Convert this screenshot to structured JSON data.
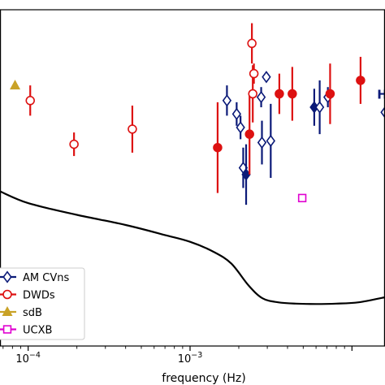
{
  "chart_data": {
    "type": "scatter",
    "title": "",
    "xlabel": "frequency (Hz)",
    "ylabel": "",
    "xscale": "log",
    "xlim": [
      6.7e-05,
      0.016
    ],
    "ylim": [
      0.5,
      10.5
    ],
    "grid": false,
    "legend_position": "lower-left",
    "x_ticks": [
      {
        "value": 0.0001,
        "base": "10",
        "exp": "−4"
      },
      {
        "value": 0.001,
        "base": "10",
        "exp": "−3"
      }
    ],
    "sensitivity_curve": {
      "x": [
        6.7e-05,
        0.0001,
        0.0002,
        0.0004,
        0.0007,
        0.001,
        0.0014,
        0.0018,
        0.0023,
        0.0028,
        0.0035,
        0.0045,
        0.006,
        0.008,
        0.011,
        0.016
      ],
      "y": [
        5.1,
        4.75,
        4.4,
        4.1,
        3.8,
        3.6,
        3.3,
        2.95,
        2.3,
        1.92,
        1.8,
        1.76,
        1.75,
        1.76,
        1.8,
        1.95
      ]
    },
    "annotations": [
      {
        "text": "H",
        "x": 0.0143,
        "y": 7.98,
        "color": "#0b1a78"
      }
    ],
    "series": [
      {
        "name": "AM CVns",
        "color": "#0b1a78",
        "marker": "diamond",
        "points": [
          {
            "x": 0.00169,
            "y": 7.8,
            "err": 0.45,
            "filled": false
          },
          {
            "x": 0.00194,
            "y": 7.4,
            "err": 0.35,
            "filled": false
          },
          {
            "x": 0.00205,
            "y": 7.0,
            "err": 0.35,
            "filled": false
          },
          {
            "x": 0.00213,
            "y": 5.8,
            "err": 0.6,
            "filled": false
          },
          {
            "x": 0.00222,
            "y": 5.6,
            "err": 0.9,
            "filled": true
          },
          {
            "x": 0.00275,
            "y": 7.9,
            "err": 0.3,
            "filled": false
          },
          {
            "x": 0.00296,
            "y": 8.5,
            "err": 0.0,
            "filled": false
          },
          {
            "x": 0.00278,
            "y": 6.55,
            "err": 0.65,
            "filled": false
          },
          {
            "x": 0.00315,
            "y": 6.6,
            "err": 1.1,
            "filled": false
          },
          {
            "x": 0.00585,
            "y": 7.6,
            "err": 0.55,
            "filled": true
          },
          {
            "x": 0.00632,
            "y": 7.6,
            "err": 0.8,
            "filled": false
          },
          {
            "x": 0.0071,
            "y": 7.9,
            "err": 0.3,
            "filled": false
          },
          {
            "x": 0.016,
            "y": 7.45,
            "err": 0.0,
            "filled": false
          }
        ]
      },
      {
        "name": "DWDs",
        "color": "#dd1111",
        "marker": "circle",
        "points": [
          {
            "x": 0.000103,
            "y": 7.8,
            "err": 0.45,
            "filled": false
          },
          {
            "x": 0.000192,
            "y": 6.5,
            "err": 0.35,
            "filled": false
          },
          {
            "x": 0.00044,
            "y": 6.95,
            "err": 0.7,
            "filled": false
          },
          {
            "x": 0.00148,
            "y": 6.4,
            "err": 1.35,
            "filled": true
          },
          {
            "x": 0.00233,
            "y": 6.8,
            "err": 1.2,
            "filled": true
          },
          {
            "x": 0.00241,
            "y": 9.5,
            "err": 0.6,
            "filled": false
          },
          {
            "x": 0.00244,
            "y": 8.0,
            "err": 0.85,
            "filled": false
          },
          {
            "x": 0.00248,
            "y": 8.6,
            "err": 0.3,
            "filled": false
          },
          {
            "x": 0.00356,
            "y": 8.0,
            "err": 0.6,
            "filled": true
          },
          {
            "x": 0.00428,
            "y": 8.0,
            "err": 0.8,
            "filled": true
          },
          {
            "x": 0.00733,
            "y": 8.0,
            "err": 0.9,
            "filled": true
          },
          {
            "x": 0.0113,
            "y": 8.4,
            "err": 0.7,
            "filled": true
          }
        ]
      },
      {
        "name": "sdB",
        "color": "#c9a227",
        "marker": "triangle",
        "points": [
          {
            "x": 8.3e-05,
            "y": 8.25,
            "err": 0.0,
            "filled": true
          }
        ]
      },
      {
        "name": "UCXB",
        "color": "#e000d0",
        "marker": "square",
        "points": [
          {
            "x": 0.00493,
            "y": 4.9,
            "err": 0.0,
            "filled": false
          }
        ]
      }
    ]
  }
}
